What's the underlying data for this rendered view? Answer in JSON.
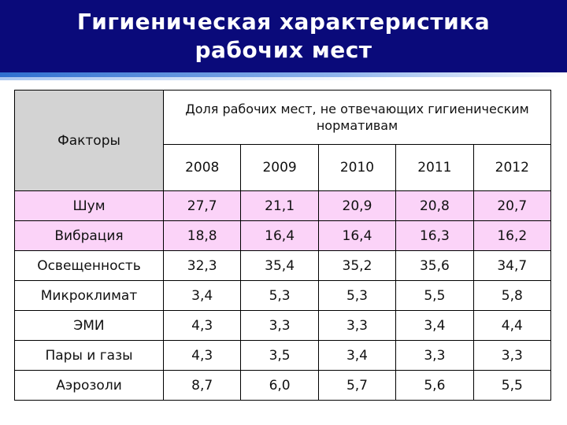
{
  "title": {
    "line1": "Гигиеническая характеристика",
    "line2": "рабочих мест"
  },
  "table": {
    "factors_header": "Факторы",
    "group_header": "Доля рабочих мест, не отвечающих гигиеническим нормативам",
    "years": [
      "2008",
      "2009",
      "2010",
      "2011",
      "2012"
    ],
    "rows": [
      {
        "factor": "Шум",
        "values": [
          "27,7",
          "21,1",
          "20,9",
          "20,8",
          "20,7"
        ],
        "highlight": true
      },
      {
        "factor": "Вибрация",
        "values": [
          "18,8",
          "16,4",
          "16,4",
          "16,3",
          "16,2"
        ],
        "highlight": true
      },
      {
        "factor": "Освещенность",
        "values": [
          "32,3",
          "35,4",
          "35,2",
          "35,6",
          "34,7"
        ],
        "highlight": false
      },
      {
        "factor": "Микроклимат",
        "values": [
          "3,4",
          "5,3",
          "5,3",
          "5,5",
          "5,8"
        ],
        "highlight": false
      },
      {
        "factor": "ЭМИ",
        "values": [
          "4,3",
          "3,3",
          "3,3",
          "3,4",
          "4,4"
        ],
        "highlight": false
      },
      {
        "factor": "Пары и газы",
        "values": [
          "4,3",
          "3,5",
          "3,4",
          "3,3",
          "3,3"
        ],
        "highlight": false
      },
      {
        "factor": "Аэрозоли",
        "values": [
          "8,7",
          "6,0",
          "5,7",
          "5,6",
          "5,5"
        ],
        "highlight": false
      }
    ]
  },
  "colors": {
    "title_bar": "#0a0a7a",
    "header_gray": "#d3d3d3",
    "highlight_pink": "#fbd3f8"
  }
}
